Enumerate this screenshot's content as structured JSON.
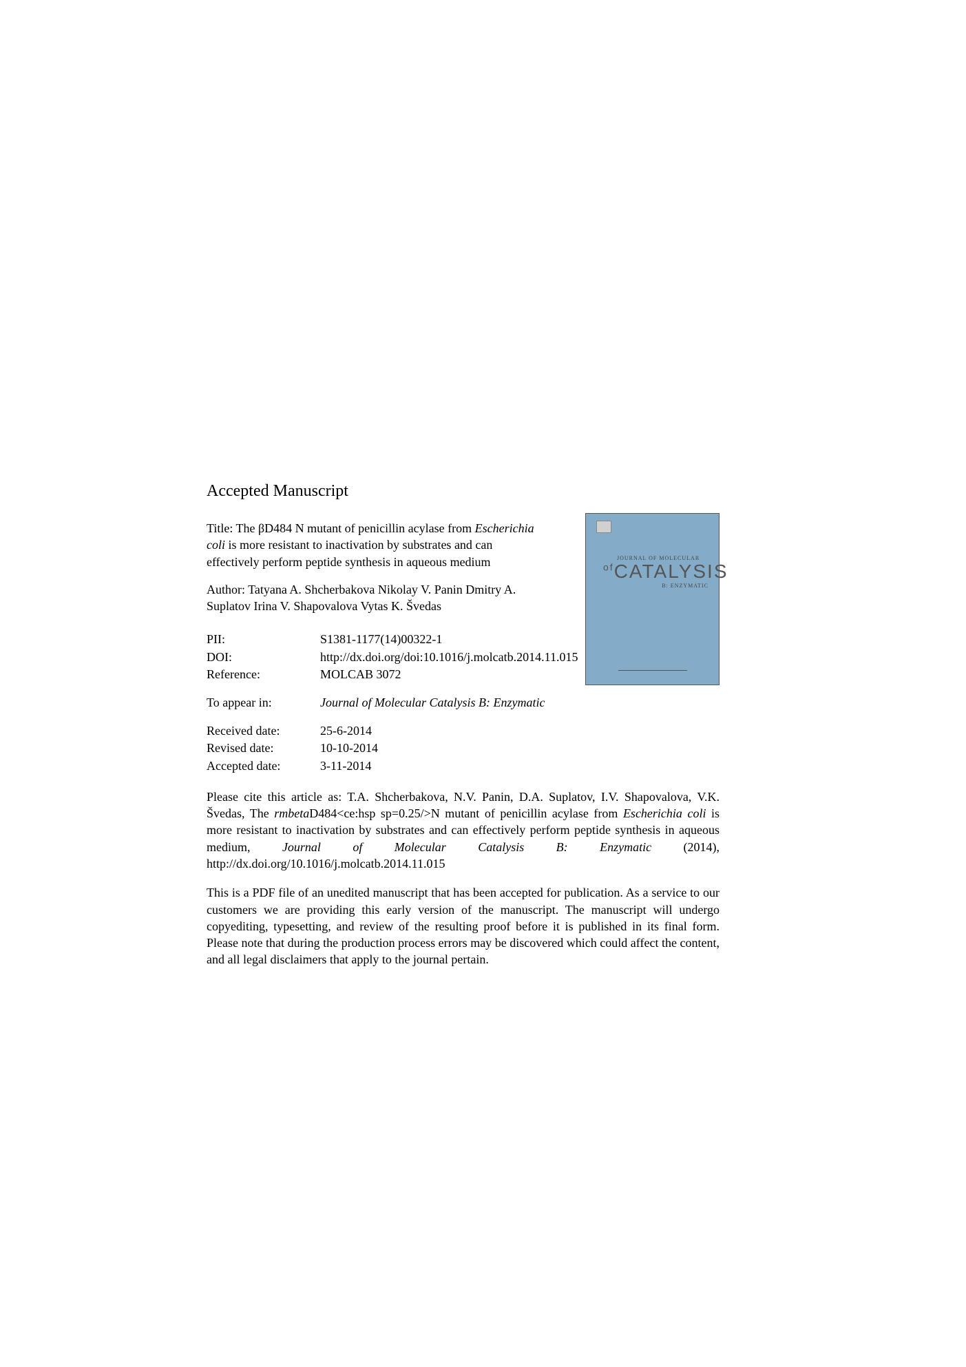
{
  "header": {
    "title": "Accepted Manuscript"
  },
  "article": {
    "title_prefix": "Title: The βD484 N mutant of penicillin acylase from ",
    "title_italic": "Escherichia coli",
    "title_suffix": " is more resistant to inactivation by substrates and can effectively perform peptide synthesis in aqueous medium",
    "author": "Author:  Tatyana A. Shcherbakova Nikolay V. Panin Dmitry A. Suplatov Irina V. Shapovalova Vytas K. Švedas"
  },
  "metadata": {
    "pii_label": "PII:",
    "pii_value": "S1381-1177(14)00322-1",
    "doi_label": "DOI:",
    "doi_value": "http://dx.doi.org/doi:10.1016/j.molcatb.2014.11.015",
    "reference_label": "Reference:",
    "reference_value": "MOLCAB 3072",
    "appear_label": "To appear in:",
    "appear_value": "Journal of Molecular Catalysis B: Enzymatic",
    "received_label": "Received date:",
    "received_value": "25-6-2014",
    "revised_label": "Revised date:",
    "revised_value": "10-10-2014",
    "accepted_label": "Accepted date:",
    "accepted_value": "3-11-2014"
  },
  "citation": {
    "prefix": "Please cite this article as: T.A. Shcherbakova, N.V. Panin, D.A. Suplatov, I.V. Shapovalova, V.K. Švedas, The ",
    "mutant_text": "rmbeta",
    "mutant_suffix": "D484<ce:hsp sp=0.25/>N mutant of penicillin acylase from ",
    "organism": "Escherichia coli",
    "middle": " is more resistant to inactivation by substrates and can effectively perform peptide synthesis in aqueous medium, ",
    "journal": "Journal of Molecular Catalysis B: Enzymatic",
    "suffix": " (2014), http://dx.doi.org/10.1016/j.molcatb.2014.11.015"
  },
  "disclaimer": "This is a PDF file of an unedited manuscript that has been accepted for publication. As a service to our customers we are providing this early version of the manuscript. The manuscript will undergo copyediting, typesetting, and review of the resulting proof before it is published in its final form. Please note that during the production process errors may be discovered which could affect the content, and all legal disclaimers that apply to the journal pertain.",
  "cover": {
    "title_small": "JOURNAL OF MOLECULAR",
    "title_prefix": "of",
    "title_main": "CATALYSIS",
    "subtitle": "B: ENZYMATIC",
    "background_color": "#84acc9"
  }
}
